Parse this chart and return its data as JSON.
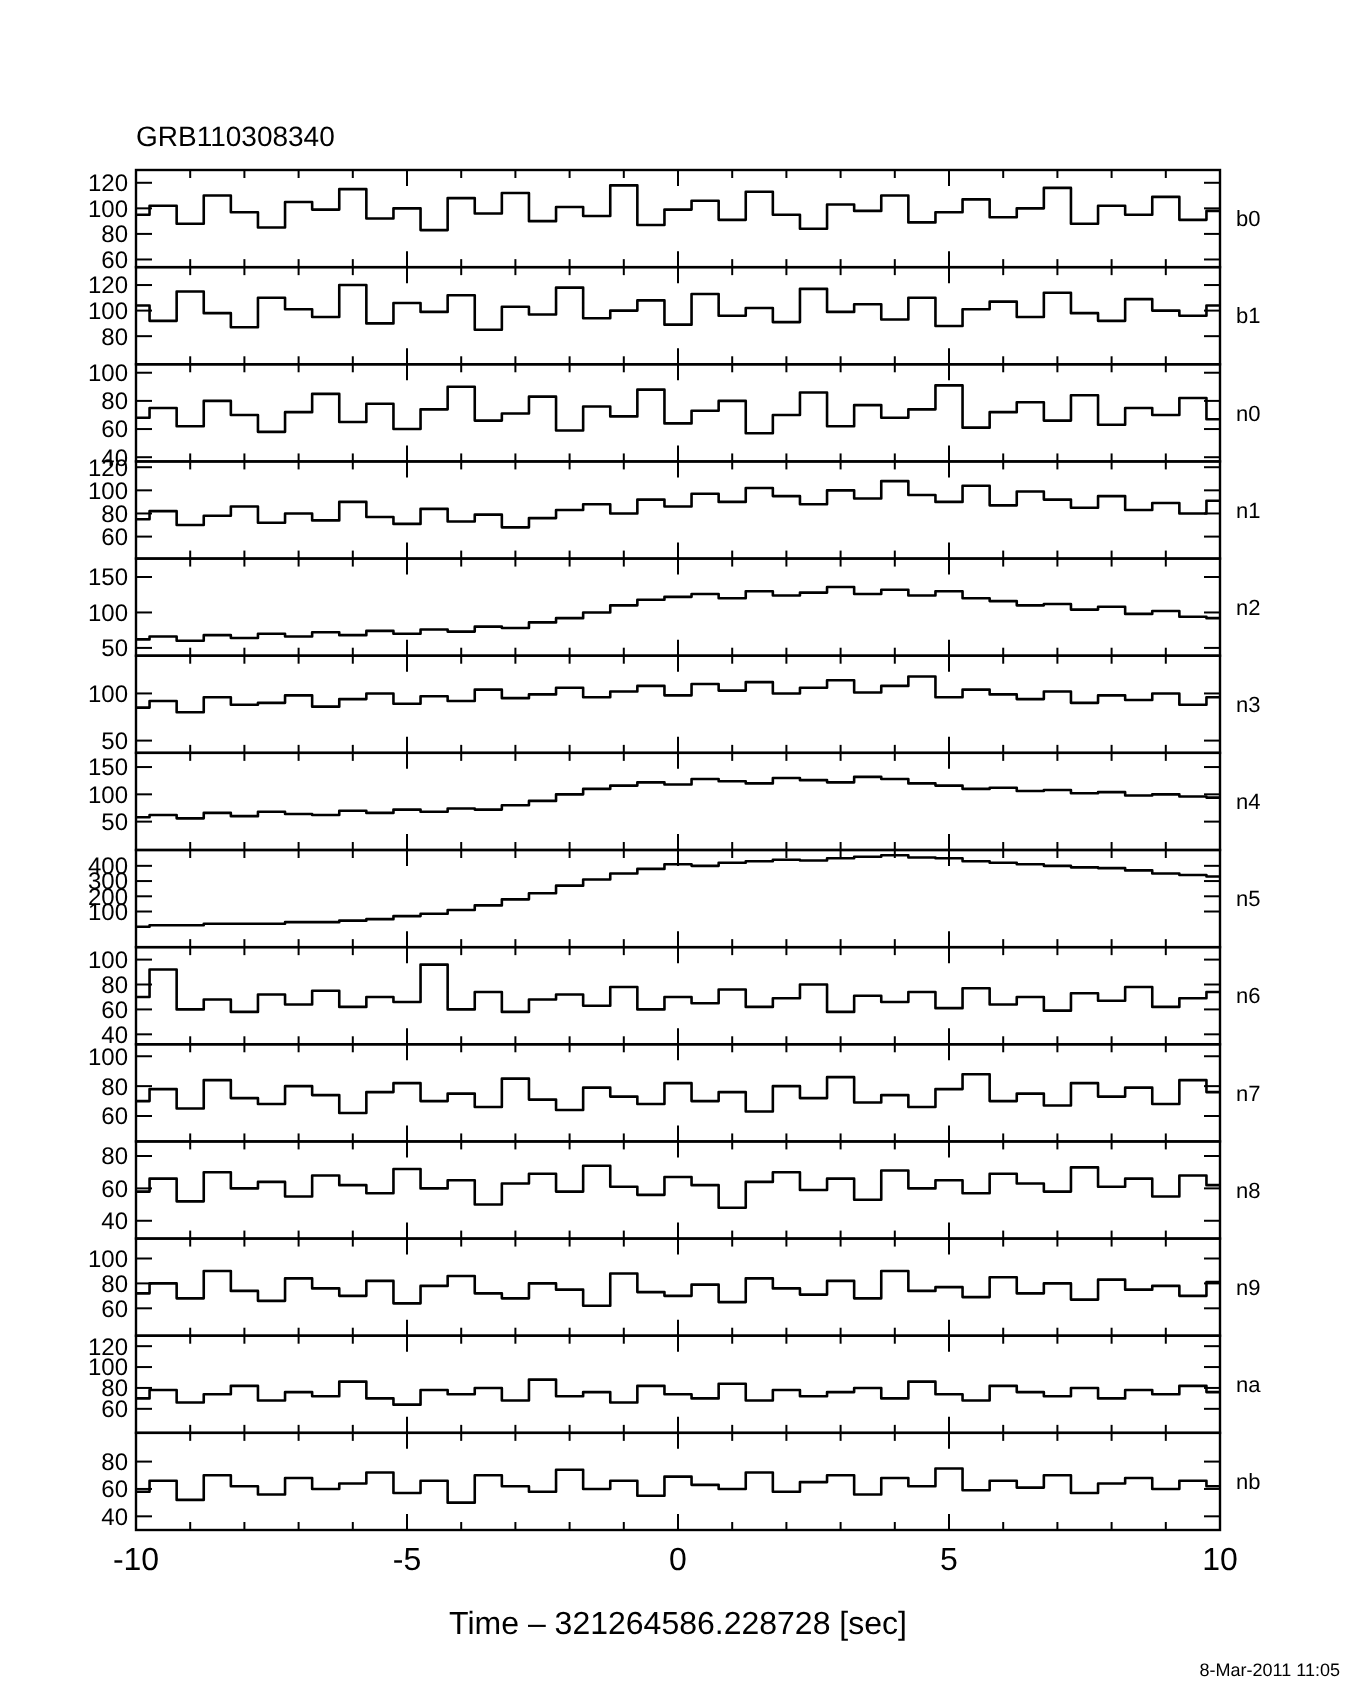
{
  "chart_data": [
    {
      "type": "step",
      "annotations": [
        "GRB110308340"
      ],
      "tick_labels": "y",
      "xlim": [
        -10,
        10
      ],
      "xticks": [
        -10,
        {
          "value": -9,
          "label": null
        },
        {
          "value": -8,
          "label": null
        },
        {
          "value": -7,
          "label": null
        },
        {
          "value": -6,
          "label": null
        },
        -5,
        {
          "value": -4,
          "label": null
        },
        {
          "value": -3,
          "label": null
        },
        {
          "value": -2,
          "label": null
        },
        {
          "value": -1,
          "label": null
        },
        0,
        {
          "value": 1,
          "label": null
        },
        {
          "value": 2,
          "label": null
        },
        {
          "value": 3,
          "label": null
        },
        {
          "value": 4,
          "label": null
        },
        5,
        {
          "value": 6,
          "label": null
        },
        {
          "value": 7,
          "label": null
        },
        {
          "value": 8,
          "label": null
        },
        {
          "value": 9,
          "label": null
        },
        10
      ],
      "ylim": [
        54,
        130
      ],
      "yticks": [
        60,
        80,
        100,
        120
      ],
      "x": [
        -10,
        -9.5,
        -9,
        -8.5,
        -8,
        -7.5,
        -7,
        -6.5,
        -6,
        -5.5,
        -5,
        -4.5,
        -4,
        -3.5,
        -3,
        -2.5,
        -2,
        -1.5,
        -1,
        -0.5,
        0,
        0.5,
        1,
        1.5,
        2,
        2.5,
        3,
        3.5,
        4,
        4.5,
        5,
        5.5,
        6,
        6.5,
        7,
        7.5,
        8,
        8.5,
        9,
        9.5,
        10
      ],
      "series": [
        {
          "name": "b0",
          "color": "#000000",
          "values": [
            95,
            102,
            88,
            110,
            97,
            85,
            105,
            99,
            115,
            92,
            100,
            83,
            108,
            96,
            112,
            90,
            101,
            94,
            118,
            87,
            99,
            106,
            91,
            113,
            95,
            84,
            103,
            98,
            110,
            89,
            97,
            107,
            93,
            100,
            116,
            88,
            102,
            95,
            109,
            91,
            98
          ]
        }
      ]
    },
    {
      "type": "step",
      "tick_labels": "y",
      "xlim": [
        -10,
        10
      ],
      "xticks": [
        -10,
        {
          "value": -9,
          "label": null
        },
        {
          "value": -8,
          "label": null
        },
        {
          "value": -7,
          "label": null
        },
        {
          "value": -6,
          "label": null
        },
        -5,
        {
          "value": -4,
          "label": null
        },
        {
          "value": -3,
          "label": null
        },
        {
          "value": -2,
          "label": null
        },
        {
          "value": -1,
          "label": null
        },
        0,
        {
          "value": 1,
          "label": null
        },
        {
          "value": 2,
          "label": null
        },
        {
          "value": 3,
          "label": null
        },
        {
          "value": 4,
          "label": null
        },
        5,
        {
          "value": 6,
          "label": null
        },
        {
          "value": 7,
          "label": null
        },
        {
          "value": 8,
          "label": null
        },
        {
          "value": 9,
          "label": null
        },
        10
      ],
      "ylim": [
        58,
        134
      ],
      "yticks": [
        80,
        100,
        120
      ],
      "x": [
        -10,
        -9.5,
        -9,
        -8.5,
        -8,
        -7.5,
        -7,
        -6.5,
        -6,
        -5.5,
        -5,
        -4.5,
        -4,
        -3.5,
        -3,
        -2.5,
        -2,
        -1.5,
        -1,
        -0.5,
        0,
        0.5,
        1,
        1.5,
        2,
        2.5,
        3,
        3.5,
        4,
        4.5,
        5,
        5.5,
        6,
        6.5,
        7,
        7.5,
        8,
        8.5,
        9,
        9.5,
        10
      ],
      "series": [
        {
          "name": "b1",
          "color": "#000000",
          "values": [
            104,
            92,
            115,
            98,
            87,
            110,
            101,
            95,
            120,
            90,
            106,
            99,
            112,
            85,
            103,
            97,
            118,
            94,
            100,
            108,
            89,
            113,
            96,
            102,
            91,
            117,
            99,
            105,
            93,
            110,
            88,
            101,
            107,
            95,
            114,
            98,
            92,
            109,
            100,
            96,
            104
          ]
        }
      ]
    },
    {
      "type": "step",
      "tick_labels": "y",
      "xlim": [
        -10,
        10
      ],
      "xticks": [
        -10,
        {
          "value": -9,
          "label": null
        },
        {
          "value": -8,
          "label": null
        },
        {
          "value": -7,
          "label": null
        },
        {
          "value": -6,
          "label": null
        },
        -5,
        {
          "value": -4,
          "label": null
        },
        {
          "value": -3,
          "label": null
        },
        {
          "value": -2,
          "label": null
        },
        {
          "value": -1,
          "label": null
        },
        0,
        {
          "value": 1,
          "label": null
        },
        {
          "value": 2,
          "label": null
        },
        {
          "value": 3,
          "label": null
        },
        {
          "value": 4,
          "label": null
        },
        5,
        {
          "value": 6,
          "label": null
        },
        {
          "value": 7,
          "label": null
        },
        {
          "value": 8,
          "label": null
        },
        {
          "value": 9,
          "label": null
        },
        10
      ],
      "ylim": [
        37,
        106
      ],
      "yticks": [
        40,
        60,
        80,
        100
      ],
      "x": [
        -10,
        -9.5,
        -9,
        -8.5,
        -8,
        -7.5,
        -7,
        -6.5,
        -6,
        -5.5,
        -5,
        -4.5,
        -4,
        -3.5,
        -3,
        -2.5,
        -2,
        -1.5,
        -1,
        -0.5,
        0,
        0.5,
        1,
        1.5,
        2,
        2.5,
        3,
        3.5,
        4,
        4.5,
        5,
        5.5,
        6,
        6.5,
        7,
        7.5,
        8,
        8.5,
        9,
        9.5,
        10
      ],
      "series": [
        {
          "name": "n0",
          "color": "#000000",
          "values": [
            68,
            75,
            62,
            80,
            70,
            58,
            72,
            85,
            65,
            78,
            60,
            74,
            90,
            66,
            71,
            83,
            59,
            76,
            69,
            88,
            64,
            73,
            80,
            57,
            70,
            86,
            62,
            77,
            68,
            74,
            91,
            61,
            72,
            79,
            66,
            84,
            63,
            75,
            70,
            82,
            67
          ]
        }
      ]
    },
    {
      "type": "step",
      "tick_labels": "y",
      "xlim": [
        -10,
        10
      ],
      "xticks": [
        -10,
        {
          "value": -9,
          "label": null
        },
        {
          "value": -8,
          "label": null
        },
        {
          "value": -7,
          "label": null
        },
        {
          "value": -6,
          "label": null
        },
        -5,
        {
          "value": -4,
          "label": null
        },
        {
          "value": -3,
          "label": null
        },
        {
          "value": -2,
          "label": null
        },
        {
          "value": -1,
          "label": null
        },
        0,
        {
          "value": 1,
          "label": null
        },
        {
          "value": 2,
          "label": null
        },
        {
          "value": 3,
          "label": null
        },
        {
          "value": 4,
          "label": null
        },
        5,
        {
          "value": 6,
          "label": null
        },
        {
          "value": 7,
          "label": null
        },
        {
          "value": 8,
          "label": null
        },
        {
          "value": 9,
          "label": null
        },
        10
      ],
      "ylim": [
        41,
        125
      ],
      "yticks": [
        60,
        80,
        100,
        120
      ],
      "x": [
        -10,
        -9.5,
        -9,
        -8.5,
        -8,
        -7.5,
        -7,
        -6.5,
        -6,
        -5.5,
        -5,
        -4.5,
        -4,
        -3.5,
        -3,
        -2.5,
        -2,
        -1.5,
        -1,
        -0.5,
        0,
        0.5,
        1,
        1.5,
        2,
        2.5,
        3,
        3.5,
        4,
        4.5,
        5,
        5.5,
        6,
        6.5,
        7,
        7.5,
        8,
        8.5,
        9,
        9.5,
        10
      ],
      "series": [
        {
          "name": "n1",
          "color": "#000000",
          "values": [
            75,
            82,
            70,
            78,
            86,
            72,
            80,
            74,
            90,
            77,
            71,
            84,
            73,
            79,
            68,
            76,
            83,
            88,
            80,
            92,
            86,
            97,
            90,
            102,
            95,
            88,
            100,
            93,
            108,
            96,
            90,
            104,
            87,
            99,
            92,
            85,
            95,
            83,
            89,
            80,
            91
          ]
        }
      ]
    },
    {
      "type": "step",
      "tick_labels": "y",
      "xlim": [
        -10,
        10
      ],
      "xticks": [
        -10,
        {
          "value": -9,
          "label": null
        },
        {
          "value": -8,
          "label": null
        },
        {
          "value": -7,
          "label": null
        },
        {
          "value": -6,
          "label": null
        },
        -5,
        {
          "value": -4,
          "label": null
        },
        {
          "value": -3,
          "label": null
        },
        {
          "value": -2,
          "label": null
        },
        {
          "value": -1,
          "label": null
        },
        0,
        {
          "value": 1,
          "label": null
        },
        {
          "value": 2,
          "label": null
        },
        {
          "value": 3,
          "label": null
        },
        {
          "value": 4,
          "label": null
        },
        5,
        {
          "value": 6,
          "label": null
        },
        {
          "value": 7,
          "label": null
        },
        {
          "value": 8,
          "label": null
        },
        {
          "value": 9,
          "label": null
        },
        10
      ],
      "ylim": [
        39,
        176
      ],
      "yticks": [
        50,
        100,
        150
      ],
      "x": [
        -10,
        -9.5,
        -9,
        -8.5,
        -8,
        -7.5,
        -7,
        -6.5,
        -6,
        -5.5,
        -5,
        -4.5,
        -4,
        -3.5,
        -3,
        -2.5,
        -2,
        -1.5,
        -1,
        -0.5,
        0,
        0.5,
        1,
        1.5,
        2,
        2.5,
        3,
        3.5,
        4,
        4.5,
        5,
        5.5,
        6,
        6.5,
        7,
        7.5,
        8,
        8.5,
        9,
        9.5,
        10
      ],
      "series": [
        {
          "name": "n2",
          "color": "#000000",
          "values": [
            62,
            66,
            60,
            68,
            64,
            70,
            66,
            72,
            68,
            74,
            70,
            76,
            73,
            80,
            78,
            86,
            92,
            100,
            110,
            118,
            122,
            126,
            120,
            130,
            124,
            128,
            136,
            126,
            132,
            124,
            130,
            120,
            116,
            110,
            112,
            104,
            108,
            98,
            102,
            94,
            92
          ]
        }
      ]
    },
    {
      "type": "step",
      "tick_labels": "y",
      "xlim": [
        -10,
        10
      ],
      "xticks": [
        -10,
        {
          "value": -9,
          "label": null
        },
        {
          "value": -8,
          "label": null
        },
        {
          "value": -7,
          "label": null
        },
        {
          "value": -6,
          "label": null
        },
        -5,
        {
          "value": -4,
          "label": null
        },
        {
          "value": -3,
          "label": null
        },
        {
          "value": -2,
          "label": null
        },
        {
          "value": -1,
          "label": null
        },
        0,
        {
          "value": 1,
          "label": null
        },
        {
          "value": 2,
          "label": null
        },
        {
          "value": 3,
          "label": null
        },
        {
          "value": 4,
          "label": null
        },
        5,
        {
          "value": 6,
          "label": null
        },
        {
          "value": 7,
          "label": null
        },
        {
          "value": 8,
          "label": null
        },
        {
          "value": 9,
          "label": null
        },
        10
      ],
      "ylim": [
        37,
        140
      ],
      "yticks": [
        50,
        100
      ],
      "x": [
        -10,
        -9.5,
        -9,
        -8.5,
        -8,
        -7.5,
        -7,
        -6.5,
        -6,
        -5.5,
        -5,
        -4.5,
        -4,
        -3.5,
        -3,
        -2.5,
        -2,
        -1.5,
        -1,
        -0.5,
        0,
        0.5,
        1,
        1.5,
        2,
        2.5,
        3,
        3.5,
        4,
        4.5,
        5,
        5.5,
        6,
        6.5,
        7,
        7.5,
        8,
        8.5,
        9,
        9.5,
        10
      ],
      "series": [
        {
          "name": "n3",
          "color": "#000000",
          "values": [
            85,
            92,
            80,
            96,
            88,
            90,
            98,
            86,
            94,
            100,
            89,
            97,
            92,
            104,
            95,
            99,
            106,
            96,
            102,
            108,
            98,
            110,
            103,
            112,
            100,
            106,
            114,
            101,
            108,
            118,
            96,
            104,
            99,
            94,
            102,
            90,
            98,
            93,
            100,
            88,
            96
          ]
        }
      ]
    },
    {
      "type": "step",
      "tick_labels": "y",
      "xlim": [
        -10,
        10
      ],
      "xticks": [
        -10,
        {
          "value": -9,
          "label": null
        },
        {
          "value": -8,
          "label": null
        },
        {
          "value": -7,
          "label": null
        },
        {
          "value": -6,
          "label": null
        },
        -5,
        {
          "value": -4,
          "label": null
        },
        {
          "value": -3,
          "label": null
        },
        {
          "value": -2,
          "label": null
        },
        {
          "value": -1,
          "label": null
        },
        0,
        {
          "value": 1,
          "label": null
        },
        {
          "value": 2,
          "label": null
        },
        {
          "value": 3,
          "label": null
        },
        {
          "value": 4,
          "label": null
        },
        5,
        {
          "value": 6,
          "label": null
        },
        {
          "value": 7,
          "label": null
        },
        {
          "value": 8,
          "label": null
        },
        {
          "value": 9,
          "label": null
        },
        10
      ],
      "ylim": [
        -2,
        176
      ],
      "yticks": [
        50,
        100,
        150
      ],
      "x": [
        -10,
        -9.5,
        -9,
        -8.5,
        -8,
        -7.5,
        -7,
        -6.5,
        -6,
        -5.5,
        -5,
        -4.5,
        -4,
        -3.5,
        -3,
        -2.5,
        -2,
        -1.5,
        -1,
        -0.5,
        0,
        0.5,
        1,
        1.5,
        2,
        2.5,
        3,
        3.5,
        4,
        4.5,
        5,
        5.5,
        6,
        6.5,
        7,
        7.5,
        8,
        8.5,
        9,
        9.5,
        10
      ],
      "series": [
        {
          "name": "n4",
          "color": "#000000",
          "values": [
            58,
            62,
            56,
            66,
            60,
            68,
            64,
            62,
            70,
            66,
            72,
            68,
            74,
            72,
            80,
            88,
            100,
            110,
            116,
            122,
            118,
            128,
            124,
            120,
            130,
            126,
            122,
            132,
            128,
            120,
            116,
            110,
            112,
            106,
            108,
            102,
            104,
            98,
            100,
            96,
            94
          ]
        }
      ]
    },
    {
      "type": "step",
      "tick_labels": "y",
      "xlim": [
        -10,
        10
      ],
      "xticks": [
        -10,
        {
          "value": -9,
          "label": null
        },
        {
          "value": -8,
          "label": null
        },
        {
          "value": -7,
          "label": null
        },
        {
          "value": -6,
          "label": null
        },
        -5,
        {
          "value": -4,
          "label": null
        },
        {
          "value": -3,
          "label": null
        },
        {
          "value": -2,
          "label": null
        },
        {
          "value": -1,
          "label": null
        },
        0,
        {
          "value": 1,
          "label": null
        },
        {
          "value": 2,
          "label": null
        },
        {
          "value": 3,
          "label": null
        },
        {
          "value": 4,
          "label": null
        },
        5,
        {
          "value": 6,
          "label": null
        },
        {
          "value": 7,
          "label": null
        },
        {
          "value": 8,
          "label": null
        },
        {
          "value": 9,
          "label": null
        },
        10
      ],
      "ylim": [
        -134,
        504
      ],
      "yticks": [
        100,
        200,
        300,
        400
      ],
      "x": [
        -10,
        -9.5,
        -9,
        -8.5,
        -8,
        -7.5,
        -7,
        -6.5,
        -6,
        -5.5,
        -5,
        -4.5,
        -4,
        -3.5,
        -3,
        -2.5,
        -2,
        -1.5,
        -1,
        -0.5,
        0,
        0.5,
        1,
        1.5,
        2,
        2.5,
        3,
        3.5,
        4,
        4.5,
        5,
        5.5,
        6,
        6.5,
        7,
        7.5,
        8,
        8.5,
        9,
        9.5,
        10
      ],
      "series": [
        {
          "name": "n5",
          "color": "#000000",
          "values": [
            0,
            10,
            10,
            20,
            20,
            20,
            30,
            30,
            40,
            50,
            70,
            85,
            110,
            140,
            180,
            220,
            270,
            310,
            350,
            380,
            410,
            400,
            420,
            430,
            440,
            435,
            450,
            460,
            470,
            455,
            450,
            430,
            420,
            410,
            400,
            390,
            385,
            370,
            350,
            340,
            330
          ]
        }
      ]
    },
    {
      "type": "step",
      "tick_labels": "y",
      "xlim": [
        -10,
        10
      ],
      "xticks": [
        -10,
        {
          "value": -9,
          "label": null
        },
        {
          "value": -8,
          "label": null
        },
        {
          "value": -7,
          "label": null
        },
        {
          "value": -6,
          "label": null
        },
        -5,
        {
          "value": -4,
          "label": null
        },
        {
          "value": -3,
          "label": null
        },
        {
          "value": -2,
          "label": null
        },
        {
          "value": -1,
          "label": null
        },
        0,
        {
          "value": 1,
          "label": null
        },
        {
          "value": 2,
          "label": null
        },
        {
          "value": 3,
          "label": null
        },
        {
          "value": 4,
          "label": null
        },
        5,
        {
          "value": 6,
          "label": null
        },
        {
          "value": 7,
          "label": null
        },
        {
          "value": 8,
          "label": null
        },
        {
          "value": 9,
          "label": null
        },
        10
      ],
      "ylim": [
        32,
        110
      ],
      "yticks": [
        40,
        60,
        80,
        100
      ],
      "x": [
        -10,
        -9.5,
        -9,
        -8.5,
        -8,
        -7.5,
        -7,
        -6.5,
        -6,
        -5.5,
        -5,
        -4.5,
        -4,
        -3.5,
        -3,
        -2.5,
        -2,
        -1.5,
        -1,
        -0.5,
        0,
        0.5,
        1,
        1.5,
        2,
        2.5,
        3,
        3.5,
        4,
        4.5,
        5,
        5.5,
        6,
        6.5,
        7,
        7.5,
        8,
        8.5,
        9,
        9.5,
        10
      ],
      "series": [
        {
          "name": "n6",
          "color": "#000000",
          "values": [
            70,
            92,
            60,
            68,
            58,
            72,
            64,
            75,
            62,
            70,
            66,
            96,
            60,
            74,
            58,
            68,
            72,
            63,
            78,
            60,
            70,
            65,
            76,
            62,
            69,
            80,
            58,
            71,
            66,
            74,
            61,
            77,
            64,
            70,
            59,
            73,
            67,
            78,
            62,
            69,
            74
          ]
        }
      ]
    },
    {
      "type": "step",
      "tick_labels": "y",
      "xlim": [
        -10,
        10
      ],
      "xticks": [
        -10,
        {
          "value": -9,
          "label": null
        },
        {
          "value": -8,
          "label": null
        },
        {
          "value": -7,
          "label": null
        },
        {
          "value": -6,
          "label": null
        },
        -5,
        {
          "value": -4,
          "label": null
        },
        {
          "value": -3,
          "label": null
        },
        {
          "value": -2,
          "label": null
        },
        {
          "value": -1,
          "label": null
        },
        0,
        {
          "value": 1,
          "label": null
        },
        {
          "value": 2,
          "label": null
        },
        {
          "value": 3,
          "label": null
        },
        {
          "value": 4,
          "label": null
        },
        5,
        {
          "value": 6,
          "label": null
        },
        {
          "value": 7,
          "label": null
        },
        {
          "value": 8,
          "label": null
        },
        {
          "value": 9,
          "label": null
        },
        10
      ],
      "ylim": [
        43,
        108
      ],
      "yticks": [
        60,
        80,
        100
      ],
      "x": [
        -10,
        -9.5,
        -9,
        -8.5,
        -8,
        -7.5,
        -7,
        -6.5,
        -6,
        -5.5,
        -5,
        -4.5,
        -4,
        -3.5,
        -3,
        -2.5,
        -2,
        -1.5,
        -1,
        -0.5,
        0,
        0.5,
        1,
        1.5,
        2,
        2.5,
        3,
        3.5,
        4,
        4.5,
        5,
        5.5,
        6,
        6.5,
        7,
        7.5,
        8,
        8.5,
        9,
        9.5,
        10
      ],
      "series": [
        {
          "name": "n7",
          "color": "#000000",
          "values": [
            70,
            78,
            65,
            84,
            72,
            68,
            80,
            74,
            62,
            76,
            82,
            70,
            75,
            66,
            85,
            71,
            64,
            79,
            73,
            68,
            82,
            70,
            76,
            63,
            80,
            72,
            86,
            69,
            74,
            66,
            78,
            88,
            70,
            75,
            67,
            82,
            73,
            79,
            68,
            84,
            76
          ]
        }
      ]
    },
    {
      "type": "step",
      "tick_labels": "y",
      "xlim": [
        -10,
        10
      ],
      "xticks": [
        -10,
        {
          "value": -9,
          "label": null
        },
        {
          "value": -8,
          "label": null
        },
        {
          "value": -7,
          "label": null
        },
        {
          "value": -6,
          "label": null
        },
        -5,
        {
          "value": -4,
          "label": null
        },
        {
          "value": -3,
          "label": null
        },
        {
          "value": -2,
          "label": null
        },
        {
          "value": -1,
          "label": null
        },
        0,
        {
          "value": 1,
          "label": null
        },
        {
          "value": 2,
          "label": null
        },
        {
          "value": 3,
          "label": null
        },
        {
          "value": 4,
          "label": null
        },
        5,
        {
          "value": 6,
          "label": null
        },
        {
          "value": 7,
          "label": null
        },
        {
          "value": 8,
          "label": null
        },
        {
          "value": 9,
          "label": null
        },
        10
      ],
      "ylim": [
        29,
        89
      ],
      "yticks": [
        40,
        60,
        80
      ],
      "x": [
        -10,
        -9.5,
        -9,
        -8.5,
        -8,
        -7.5,
        -7,
        -6.5,
        -6,
        -5.5,
        -5,
        -4.5,
        -4,
        -3.5,
        -3,
        -2.5,
        -2,
        -1.5,
        -1,
        -0.5,
        0,
        0.5,
        1,
        1.5,
        2,
        2.5,
        3,
        3.5,
        4,
        4.5,
        5,
        5.5,
        6,
        6.5,
        7,
        7.5,
        8,
        8.5,
        9,
        9.5,
        10
      ],
      "series": [
        {
          "name": "n8",
          "color": "#000000",
          "values": [
            58,
            66,
            52,
            70,
            60,
            64,
            55,
            68,
            62,
            57,
            72,
            60,
            65,
            50,
            63,
            69,
            58,
            74,
            61,
            56,
            67,
            62,
            48,
            64,
            70,
            59,
            66,
            53,
            71,
            60,
            65,
            57,
            69,
            63,
            58,
            73,
            61,
            66,
            55,
            68,
            62
          ]
        }
      ]
    },
    {
      "type": "step",
      "tick_labels": "y",
      "xlim": [
        -10,
        10
      ],
      "xticks": [
        -10,
        {
          "value": -9,
          "label": null
        },
        {
          "value": -8,
          "label": null
        },
        {
          "value": -7,
          "label": null
        },
        {
          "value": -6,
          "label": null
        },
        -5,
        {
          "value": -4,
          "label": null
        },
        {
          "value": -3,
          "label": null
        },
        {
          "value": -2,
          "label": null
        },
        {
          "value": -1,
          "label": null
        },
        0,
        {
          "value": 1,
          "label": null
        },
        {
          "value": 2,
          "label": null
        },
        {
          "value": 3,
          "label": null
        },
        {
          "value": 4,
          "label": null
        },
        5,
        {
          "value": 6,
          "label": null
        },
        {
          "value": 7,
          "label": null
        },
        {
          "value": 8,
          "label": null
        },
        {
          "value": 9,
          "label": null
        },
        10
      ],
      "ylim": [
        38,
        116
      ],
      "yticks": [
        60,
        80,
        100
      ],
      "x": [
        -10,
        -9.5,
        -9,
        -8.5,
        -8,
        -7.5,
        -7,
        -6.5,
        -6,
        -5.5,
        -5,
        -4.5,
        -4,
        -3.5,
        -3,
        -2.5,
        -2,
        -1.5,
        -1,
        -0.5,
        0,
        0.5,
        1,
        1.5,
        2,
        2.5,
        3,
        3.5,
        4,
        4.5,
        5,
        5.5,
        6,
        6.5,
        7,
        7.5,
        8,
        8.5,
        9,
        9.5,
        10
      ],
      "series": [
        {
          "name": "n9",
          "color": "#000000",
          "values": [
            72,
            80,
            68,
            90,
            74,
            66,
            84,
            76,
            70,
            82,
            64,
            78,
            86,
            72,
            68,
            80,
            75,
            62,
            88,
            73,
            70,
            79,
            65,
            84,
            76,
            71,
            82,
            68,
            90,
            74,
            77,
            69,
            85,
            72,
            80,
            67,
            83,
            75,
            78,
            70,
            81
          ]
        }
      ]
    },
    {
      "type": "step",
      "tick_labels": "y",
      "xlim": [
        -10,
        10
      ],
      "xticks": [
        -10,
        {
          "value": -9,
          "label": null
        },
        {
          "value": -8,
          "label": null
        },
        {
          "value": -7,
          "label": null
        },
        {
          "value": -6,
          "label": null
        },
        -5,
        {
          "value": -4,
          "label": null
        },
        {
          "value": -3,
          "label": null
        },
        {
          "value": -2,
          "label": null
        },
        {
          "value": -1,
          "label": null
        },
        0,
        {
          "value": 1,
          "label": null
        },
        {
          "value": 2,
          "label": null
        },
        {
          "value": 3,
          "label": null
        },
        {
          "value": 4,
          "label": null
        },
        5,
        {
          "value": 6,
          "label": null
        },
        {
          "value": 7,
          "label": null
        },
        {
          "value": 8,
          "label": null
        },
        {
          "value": 9,
          "label": null
        },
        10
      ],
      "ylim": [
        37,
        130
      ],
      "yticks": [
        60,
        80,
        100,
        120
      ],
      "x": [
        -10,
        -9.5,
        -9,
        -8.5,
        -8,
        -7.5,
        -7,
        -6.5,
        -6,
        -5.5,
        -5,
        -4.5,
        -4,
        -3.5,
        -3,
        -2.5,
        -2,
        -1.5,
        -1,
        -0.5,
        0,
        0.5,
        1,
        1.5,
        2,
        2.5,
        3,
        3.5,
        4,
        4.5,
        5,
        5.5,
        6,
        6.5,
        7,
        7.5,
        8,
        8.5,
        9,
        9.5,
        10
      ],
      "series": [
        {
          "name": "na",
          "color": "#000000",
          "values": [
            70,
            78,
            66,
            74,
            82,
            68,
            76,
            72,
            86,
            70,
            64,
            78,
            74,
            80,
            68,
            88,
            72,
            76,
            66,
            82,
            74,
            70,
            84,
            68,
            78,
            72,
            76,
            80,
            70,
            86,
            74,
            68,
            82,
            76,
            72,
            80,
            70,
            78,
            74,
            82,
            76
          ]
        }
      ]
    },
    {
      "type": "step",
      "xlabel": "Time – 321264586.228728 [sec]",
      "annotations": [
        "8-Mar-2011 11:05"
      ],
      "xlim": [
        -10,
        10
      ],
      "xticks": [
        -10,
        {
          "value": -9,
          "label": null
        },
        {
          "value": -8,
          "label": null
        },
        {
          "value": -7,
          "label": null
        },
        {
          "value": -6,
          "label": null
        },
        -5,
        {
          "value": -4,
          "label": null
        },
        {
          "value": -3,
          "label": null
        },
        {
          "value": -2,
          "label": null
        },
        {
          "value": -1,
          "label": null
        },
        0,
        {
          "value": 1,
          "label": null
        },
        {
          "value": 2,
          "label": null
        },
        {
          "value": 3,
          "label": null
        },
        {
          "value": 4,
          "label": null
        },
        5,
        {
          "value": 6,
          "label": null
        },
        {
          "value": 7,
          "label": null
        },
        {
          "value": 8,
          "label": null
        },
        {
          "value": 9,
          "label": null
        },
        10
      ],
      "ylim": [
        30,
        101
      ],
      "yticks": [
        40,
        60,
        80
      ],
      "x": [
        -10,
        -9.5,
        -9,
        -8.5,
        -8,
        -7.5,
        -7,
        -6.5,
        -6,
        -5.5,
        -5,
        -4.5,
        -4,
        -3.5,
        -3,
        -2.5,
        -2,
        -1.5,
        -1,
        -0.5,
        0,
        0.5,
        1,
        1.5,
        2,
        2.5,
        3,
        3.5,
        4,
        4.5,
        5,
        5.5,
        6,
        6.5,
        7,
        7.5,
        8,
        8.5,
        9,
        9.5,
        10
      ],
      "series": [
        {
          "name": "nb",
          "color": "#000000",
          "values": [
            58,
            66,
            52,
            70,
            62,
            56,
            68,
            60,
            64,
            72,
            57,
            66,
            50,
            70,
            62,
            58,
            74,
            60,
            66,
            55,
            69,
            63,
            60,
            72,
            58,
            65,
            70,
            56,
            68,
            62,
            75,
            59,
            66,
            61,
            70,
            57,
            64,
            68,
            60,
            66,
            62
          ]
        }
      ]
    }
  ]
}
